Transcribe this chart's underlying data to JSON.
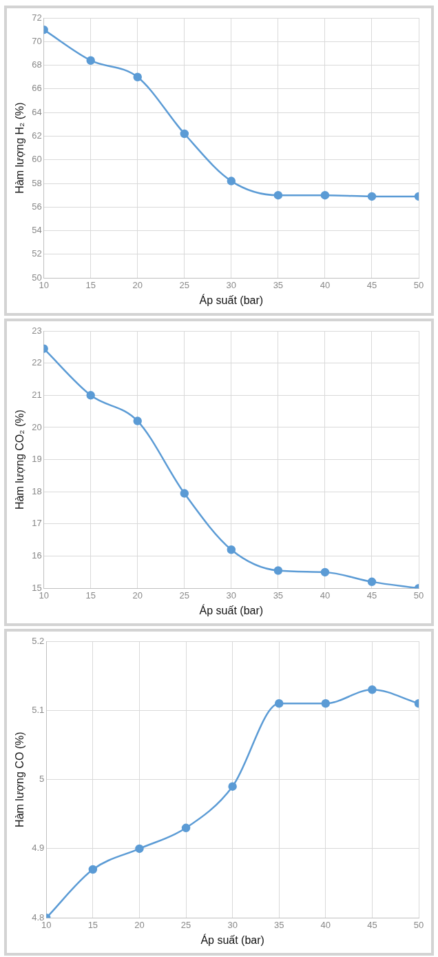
{
  "chart_data": [
    {
      "type": "line",
      "xlabel": "Áp suất (bar)",
      "ylabel": "Hàm lượng H₂ (%)",
      "x": [
        10,
        15,
        20,
        25,
        30,
        35,
        40,
        45,
        50
      ],
      "xlim": [
        10,
        50
      ],
      "xticks": [
        10,
        15,
        20,
        25,
        30,
        35,
        40,
        45,
        50
      ],
      "ylim": [
        50,
        72
      ],
      "yticks": [
        50,
        52,
        54,
        56,
        58,
        60,
        62,
        64,
        66,
        68,
        70,
        72
      ],
      "grid": true,
      "marker": "circle",
      "line_style": "solid",
      "series": [
        {
          "color": "#5b9bd5",
          "values": [
            71,
            68.4,
            67,
            62.2,
            58.2,
            57,
            57,
            56.9,
            56.9
          ]
        }
      ]
    },
    {
      "type": "line",
      "xlabel": "Áp suất (bar)",
      "ylabel": "Hàm lượng CO₂ (%)",
      "x": [
        10,
        15,
        20,
        25,
        30,
        35,
        40,
        45,
        50
      ],
      "xlim": [
        10,
        50
      ],
      "xticks": [
        10,
        15,
        20,
        25,
        30,
        35,
        40,
        45,
        50
      ],
      "ylim": [
        15,
        23
      ],
      "yticks": [
        15,
        16,
        17,
        18,
        19,
        20,
        21,
        22,
        23
      ],
      "grid": true,
      "marker": "circle",
      "line_style": "solid",
      "series": [
        {
          "color": "#5b9bd5",
          "values": [
            22.45,
            21,
            20.2,
            17.95,
            16.2,
            15.55,
            15.5,
            15.2,
            15
          ]
        }
      ]
    },
    {
      "type": "line",
      "xlabel": "Áp suất (bar)",
      "ylabel": "Hàm lượng CO (%)",
      "x": [
        10,
        15,
        20,
        25,
        30,
        35,
        40,
        45,
        50
      ],
      "xlim": [
        10,
        50
      ],
      "xticks": [
        10,
        15,
        20,
        25,
        30,
        35,
        40,
        45,
        50
      ],
      "ylim": [
        4.8,
        5.2
      ],
      "yticks": [
        4.8,
        4.9,
        5,
        5.1,
        5.2
      ],
      "grid": true,
      "marker": "circle",
      "line_style": "solid",
      "series": [
        {
          "color": "#5b9bd5",
          "values": [
            4.8,
            4.87,
            4.9,
            4.93,
            4.99,
            5.11,
            5.11,
            5.13,
            5.11
          ]
        }
      ]
    }
  ]
}
